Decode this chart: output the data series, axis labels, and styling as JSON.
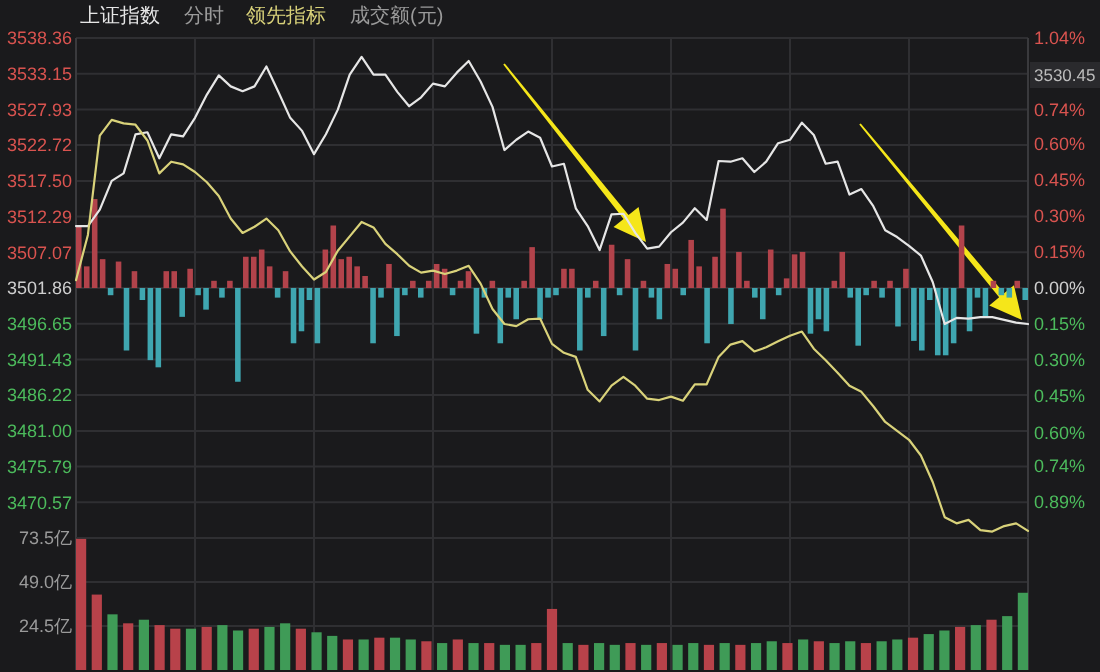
{
  "chart_data": [
    {
      "type": "line",
      "grid": true,
      "annotations": [
        "分时"
      ],
      "categories": [
        null,
        null,
        null,
        null,
        null,
        null,
        null,
        null,
        null,
        null,
        null,
        null,
        null,
        null,
        null,
        null,
        null,
        null,
        null,
        null,
        null,
        null,
        null,
        null,
        null,
        null,
        null,
        null,
        null,
        null,
        null,
        null,
        null,
        null,
        null,
        null,
        null,
        null,
        null,
        null,
        null,
        null,
        null,
        null,
        null,
        null,
        null,
        null,
        null,
        null,
        null,
        null,
        null,
        null,
        null,
        null,
        null,
        null,
        null,
        null,
        null,
        null,
        null,
        null,
        null,
        null,
        null,
        null,
        null,
        null,
        null,
        null,
        null,
        null,
        null,
        null,
        null,
        null,
        null,
        null,
        null
      ],
      "ylim": [
        3465.36,
        3538.36
      ],
      "yticks": [
        3538.36,
        3533.15,
        3527.93,
        3522.72,
        {
          "value": 3517.5,
          "label": "3517.50"
        },
        3512.29,
        3507.07,
        3501.86,
        3496.65,
        3491.43,
        3486.22,
        {
          "value": 3481,
          "label": "3481.00"
        },
        3475.79,
        3470.57
      ],
      "series": [
        {
          "name": "上证指数",
          "color": "#e6e6e6",
          "values": [
            3510.9,
            3510.9,
            3513.3,
            3517.5,
            3518.6,
            3524.3,
            3524.6,
            3520.8,
            3524.3,
            3524.0,
            3526.7,
            3530.1,
            3532.9,
            3531.3,
            3530.6,
            3531.3,
            3534.2,
            3530.5,
            3526.7,
            3524.8,
            3521.4,
            3524.3,
            3527.9,
            3533.0,
            3535.6,
            3533.0,
            3533.0,
            3530.5,
            3528.4,
            3529.7,
            3531.7,
            3531.3,
            3533.3,
            3535.0,
            3532.0,
            3528.3,
            3522.0,
            3523.5,
            3524.7,
            3523.8,
            3519.6,
            3520.0,
            3513.5,
            3510.9,
            3507.4,
            3512.6,
            3512.7,
            3509.9,
            3507.6,
            3507.9,
            3510.0,
            3511.4,
            3513.5,
            3511.8,
            3520.4,
            3520.3,
            3520.8,
            3518.8,
            3520.3,
            3523.0,
            3523.5,
            3526.0,
            3524.2,
            3520.0,
            3520.3,
            3515.5,
            3516.3,
            3513.8,
            3510.3,
            3509.3,
            3508.0,
            3506.6,
            3502.7,
            3496.6,
            3497.5,
            3497.4,
            3497.6,
            3497.6,
            3497.2,
            3496.8,
            3496.6
          ]
        },
        {
          "name": "领先指标",
          "color": "#d9d27a",
          "values": [
            3503.0,
            3509.6,
            3524.1,
            3526.4,
            3525.9,
            3525.7,
            3523.4,
            3518.6,
            3520.3,
            3519.9,
            3518.8,
            3517.3,
            3515.3,
            3512.0,
            3509.9,
            3510.8,
            3512.0,
            3510.3,
            3507.2,
            3505.0,
            3503.1,
            3504.2,
            3507.3,
            3509.4,
            3511.5,
            3510.7,
            3508.3,
            3506.8,
            3505.1,
            3504.1,
            3504.4,
            3503.9,
            3504.4,
            3505.1,
            3502.5,
            3498.8,
            3496.6,
            3496.3,
            3497.3,
            3497.4,
            3493.7,
            3492.4,
            3491.8,
            3487.0,
            3485.3,
            3487.6,
            3488.9,
            3487.6,
            3485.7,
            3485.5,
            3486.0,
            3485.4,
            3487.8,
            3487.8,
            3491.8,
            3493.6,
            3494.1,
            3492.6,
            3493.2,
            3494.1,
            3494.9,
            3495.5,
            3493.0,
            3491.3,
            3489.5,
            3487.6,
            3486.7,
            3484.6,
            3482.3,
            3481.0,
            3479.7,
            3477.4,
            3473.5,
            3468.4,
            3467.5,
            3468.0,
            3466.5,
            3466.3,
            3467.1,
            3467.5,
            3466.4
          ]
        }
      ]
    },
    {
      "type": "bar",
      "annotations": [
        "3530.45"
      ],
      "categories": [
        null,
        null,
        null,
        null,
        null,
        null,
        null,
        null,
        null,
        null,
        null,
        null,
        null,
        null,
        null,
        null,
        null,
        null,
        null,
        null,
        null,
        null,
        null,
        null,
        null,
        null,
        null,
        null,
        null,
        null,
        null,
        null,
        null,
        null,
        null,
        null,
        null,
        null,
        null,
        null,
        null,
        null,
        null,
        null,
        null,
        null,
        null,
        null,
        null,
        null,
        null,
        null,
        null,
        null,
        null,
        null,
        null,
        null,
        null,
        null,
        null,
        null,
        null,
        null,
        null,
        null,
        null,
        null,
        null,
        null,
        null,
        null,
        null,
        null,
        null,
        null,
        null,
        null,
        null,
        null,
        null,
        null,
        null,
        null,
        null,
        null,
        null,
        null,
        null,
        null,
        null,
        null,
        null,
        null,
        null,
        null,
        null,
        null,
        null,
        null,
        null,
        null,
        null,
        null,
        null,
        null,
        null,
        null,
        null,
        null,
        null,
        null,
        null,
        null,
        null,
        null,
        null,
        null,
        null,
        null
      ],
      "ylim": [
        -1.04,
        1.04
      ],
      "yticks": [
        {
          "value": 1.04,
          "label": "1.04%"
        },
        {
          "value": 0.74,
          "label": "0.74%"
        },
        {
          "value": 0.6,
          "label": "0.60%"
        },
        {
          "value": 0.45,
          "label": "0.45%"
        },
        {
          "value": 0.3,
          "label": "0.30%"
        },
        {
          "value": 0.15,
          "label": "0.15%"
        },
        {
          "value": 0,
          "label": "0.00%"
        },
        {
          "value": -0.15,
          "label": "0.15%"
        },
        {
          "value": -0.3,
          "label": "0.30%"
        },
        {
          "value": -0.45,
          "label": "0.45%"
        },
        {
          "value": -0.6,
          "label": "0.60%"
        },
        {
          "value": -0.74,
          "label": "0.74%"
        },
        {
          "value": -0.89,
          "label": "0.89%"
        }
      ],
      "values": [
        0.26,
        0.09,
        0.37,
        0.12,
        -0.03,
        0.11,
        -0.26,
        0.07,
        -0.05,
        -0.3,
        -0.33,
        0.07,
        0.07,
        -0.12,
        0.08,
        -0.03,
        -0.09,
        0.03,
        -0.04,
        0.03,
        -0.39,
        0.13,
        0.13,
        0.16,
        0.09,
        -0.04,
        0.07,
        -0.23,
        -0.18,
        -0.05,
        -0.23,
        0.16,
        0.26,
        0.12,
        0.13,
        0.09,
        0.05,
        -0.23,
        -0.04,
        0.1,
        -0.2,
        -0.03,
        0.03,
        -0.04,
        0.03,
        0.1,
        0.08,
        -0.03,
        0.03,
        0.07,
        -0.19,
        -0.04,
        0.03,
        -0.23,
        -0.04,
        -0.13,
        0.03,
        0.17,
        -0.13,
        -0.04,
        -0.03,
        0.08,
        0.08,
        -0.26,
        -0.04,
        0.03,
        -0.2,
        0.18,
        -0.03,
        0.12,
        -0.26,
        0.03,
        -0.04,
        -0.13,
        0.1,
        0.08,
        -0.03,
        0.2,
        0.09,
        -0.23,
        0.13,
        0.33,
        -0.15,
        0.15,
        0.03,
        -0.04,
        -0.13,
        0.16,
        -0.03,
        0.04,
        0.14,
        0.15,
        -0.19,
        -0.13,
        -0.18,
        0.03,
        0.15,
        -0.04,
        -0.24,
        -0.03,
        0.03,
        -0.04,
        0.03,
        -0.16,
        0.08,
        -0.22,
        -0.26,
        -0.05,
        -0.28,
        -0.28,
        -0.23,
        0.26,
        -0.18,
        -0.04,
        -0.12,
        0.03,
        -0.03,
        -0.04,
        0.03,
        -0.05
      ],
      "colors": [
        "#b2434b",
        "#b2434b",
        "#b2434b",
        "#b2434b",
        "#3fa6b0",
        "#b2434b",
        "#3fa6b0",
        "#b2434b",
        "#3fa6b0",
        "#3fa6b0",
        "#3fa6b0",
        "#b2434b",
        "#b2434b",
        "#3fa6b0",
        "#b2434b",
        "#3fa6b0",
        "#3fa6b0",
        "#b2434b",
        "#3fa6b0",
        "#b2434b",
        "#3fa6b0",
        "#b2434b",
        "#b2434b",
        "#b2434b",
        "#b2434b",
        "#3fa6b0",
        "#b2434b",
        "#3fa6b0",
        "#3fa6b0",
        "#3fa6b0",
        "#3fa6b0",
        "#b2434b",
        "#b2434b",
        "#b2434b",
        "#b2434b",
        "#b2434b",
        "#b2434b",
        "#3fa6b0",
        "#3fa6b0",
        "#b2434b",
        "#3fa6b0",
        "#3fa6b0",
        "#b2434b",
        "#3fa6b0",
        "#b2434b",
        "#b2434b",
        "#b2434b",
        "#3fa6b0",
        "#b2434b",
        "#b2434b",
        "#3fa6b0",
        "#3fa6b0",
        "#b2434b",
        "#3fa6b0",
        "#3fa6b0",
        "#3fa6b0",
        "#b2434b",
        "#b2434b",
        "#3fa6b0",
        "#3fa6b0",
        "#3fa6b0",
        "#b2434b",
        "#b2434b",
        "#3fa6b0",
        "#3fa6b0",
        "#b2434b",
        "#3fa6b0",
        "#b2434b",
        "#3fa6b0",
        "#b2434b",
        "#3fa6b0",
        "#b2434b",
        "#3fa6b0",
        "#3fa6b0",
        "#b2434b",
        "#b2434b",
        "#3fa6b0",
        "#b2434b",
        "#b2434b",
        "#3fa6b0",
        "#b2434b",
        "#b2434b",
        "#3fa6b0",
        "#b2434b",
        "#b2434b",
        "#3fa6b0",
        "#3fa6b0",
        "#b2434b",
        "#3fa6b0",
        "#b2434b",
        "#b2434b",
        "#b2434b",
        "#3fa6b0",
        "#3fa6b0",
        "#3fa6b0",
        "#b2434b",
        "#b2434b",
        "#3fa6b0",
        "#3fa6b0",
        "#3fa6b0",
        "#b2434b",
        "#3fa6b0",
        "#b2434b",
        "#3fa6b0",
        "#b2434b",
        "#3fa6b0",
        "#3fa6b0",
        "#3fa6b0",
        "#3fa6b0",
        "#3fa6b0",
        "#3fa6b0",
        "#b2434b",
        "#3fa6b0",
        "#3fa6b0",
        "#3fa6b0",
        "#b2434b",
        "#3fa6b0",
        "#3fa6b0",
        "#b2434b",
        "#3fa6b0"
      ]
    },
    {
      "type": "bar",
      "title": "成交额(元)",
      "grid": true,
      "ylim": [
        0,
        73.5
      ],
      "yticks": [
        {
          "value": 73.5,
          "label": "73.5亿"
        },
        {
          "value": 49,
          "label": "49.0亿"
        },
        {
          "value": 24.5,
          "label": "24.5亿"
        }
      ],
      "categories": [
        null,
        null,
        null,
        null,
        null,
        null,
        null,
        null,
        null,
        null,
        null,
        null,
        null,
        null,
        null,
        null,
        null,
        null,
        null,
        null,
        null,
        null,
        null,
        null,
        null,
        null,
        null,
        null,
        null,
        null,
        null,
        null,
        null,
        null,
        null,
        null,
        null,
        null,
        null,
        null,
        null,
        null,
        null,
        null,
        null,
        null,
        null,
        null,
        null,
        null,
        null,
        null,
        null,
        null,
        null,
        null,
        null,
        null,
        null,
        null,
        null
      ],
      "values": [
        73,
        42,
        31,
        26,
        28,
        25,
        23,
        23,
        24,
        25,
        22,
        23,
        24,
        26,
        23,
        21,
        19,
        17,
        17,
        18,
        18,
        17,
        16,
        15,
        17,
        15,
        15,
        14,
        14,
        15,
        34,
        15,
        14,
        15,
        14,
        15,
        14,
        15,
        14,
        15,
        14,
        15,
        14,
        15,
        16,
        15,
        17,
        16,
        15,
        16,
        15,
        16,
        17,
        18,
        20,
        22,
        24,
        25,
        28,
        30,
        43
      ],
      "colors": [
        "#b8424a",
        "#b8424a",
        "#3f9b57",
        "#b8424a",
        "#3f9b57",
        "#b8424a",
        "#b8424a",
        "#3f9b57",
        "#b8424a",
        "#3f9b57",
        "#3f9b57",
        "#b8424a",
        "#3f9b57",
        "#3f9b57",
        "#b8424a",
        "#3f9b57",
        "#3f9b57",
        "#b8424a",
        "#3f9b57",
        "#b8424a",
        "#3f9b57",
        "#3f9b57",
        "#b8424a",
        "#3f9b57",
        "#b8424a",
        "#3f9b57",
        "#b8424a",
        "#3f9b57",
        "#3f9b57",
        "#b8424a",
        "#b8424a",
        "#3f9b57",
        "#b8424a",
        "#3f9b57",
        "#3f9b57",
        "#b8424a",
        "#3f9b57",
        "#b8424a",
        "#3f9b57",
        "#3f9b57",
        "#b8424a",
        "#3f9b57",
        "#b8424a",
        "#3f9b57",
        "#3f9b57",
        "#b8424a",
        "#3f9b57",
        "#b8424a",
        "#3f9b57",
        "#3f9b57",
        "#b8424a",
        "#3f9b57",
        "#3f9b57",
        "#b8424a",
        "#3f9b57",
        "#3f9b57",
        "#b8424a",
        "#3f9b57",
        "#b8424a",
        "#3f9b57",
        "#3f9b57"
      ]
    }
  ]
}
